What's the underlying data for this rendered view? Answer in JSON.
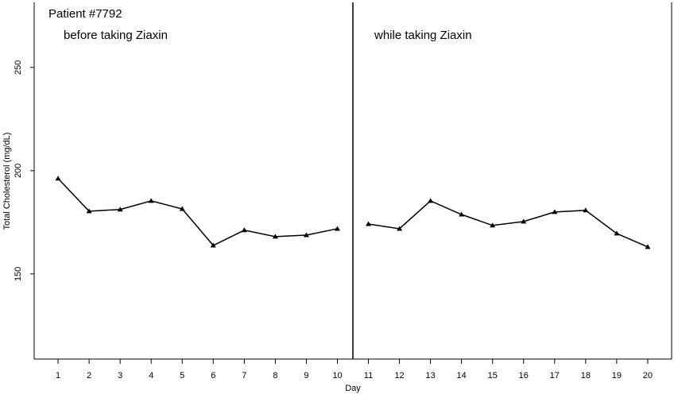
{
  "chart_data": {
    "type": "line",
    "title": "Patient #7792",
    "annotations": [
      "before taking Ziaxin",
      "while taking Ziaxin"
    ],
    "xlabel": "Day",
    "ylabel": "Total Cholesterol (mg/dL)",
    "series": [
      {
        "color": "#000000",
        "x": [
          1,
          2,
          3,
          4,
          5,
          6,
          7,
          8,
          9,
          10
        ],
        "values": [
          196.2,
          180.4,
          181.2,
          185.4,
          181.5,
          163.8,
          171.2,
          168.1,
          168.8,
          171.9
        ]
      },
      {
        "color": "#000000",
        "x": [
          11,
          12,
          13,
          14,
          15,
          16,
          17,
          18,
          19,
          20
        ],
        "values": [
          174.2,
          171.9,
          185.4,
          178.8,
          173.5,
          175.4,
          180,
          180.8,
          169.6,
          163.1
        ]
      }
    ],
    "xlim": [
      0.23,
      20.77
    ],
    "xticks": [
      1,
      2,
      3,
      4,
      5,
      6,
      7,
      8,
      9,
      10,
      11,
      12,
      13,
      14,
      15,
      16,
      17,
      18,
      19,
      20
    ],
    "ylim": [
      108.8,
      281.5
    ],
    "yticks": [
      150,
      200,
      250
    ],
    "grid": false
  }
}
